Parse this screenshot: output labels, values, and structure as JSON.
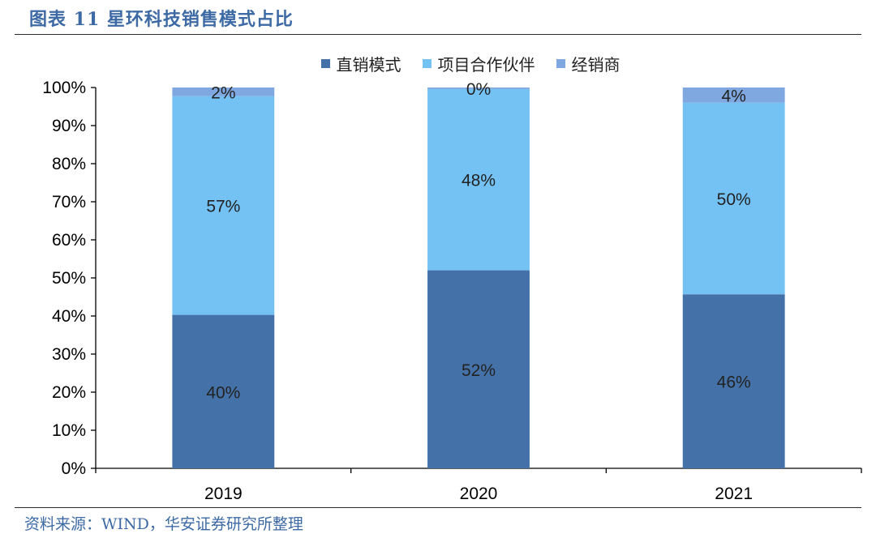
{
  "title": "图表 11 星环科技销售模式占比",
  "source": "资料来源：WIND，华安证券研究所整理",
  "colors": {
    "series": [
      "#4472a8",
      "#74c1f4",
      "#7fa8e0"
    ],
    "axis": "#000000",
    "label_text": "#222222"
  },
  "chart_data": {
    "type": "bar",
    "stacked": true,
    "categories": [
      "2019",
      "2020",
      "2021"
    ],
    "series": [
      {
        "name": "直销模式",
        "values": [
          40.3,
          52,
          45.7
        ],
        "labels": [
          "40%",
          "52%",
          "46%"
        ]
      },
      {
        "name": "项目合作伙伴",
        "values": [
          57.4,
          47.6,
          50.3
        ],
        "labels": [
          "57%",
          "48%",
          "50%"
        ]
      },
      {
        "name": "经销商",
        "values": [
          2.3,
          0.4,
          4.0
        ],
        "labels": [
          "2%",
          "0%",
          "4%"
        ]
      }
    ],
    "ylim": [
      0,
      100
    ],
    "yticks": [
      "0%",
      "10%",
      "20%",
      "30%",
      "40%",
      "50%",
      "60%",
      "70%",
      "80%",
      "90%",
      "100%"
    ],
    "legend_position": "top",
    "xlabel": "",
    "ylabel": ""
  }
}
